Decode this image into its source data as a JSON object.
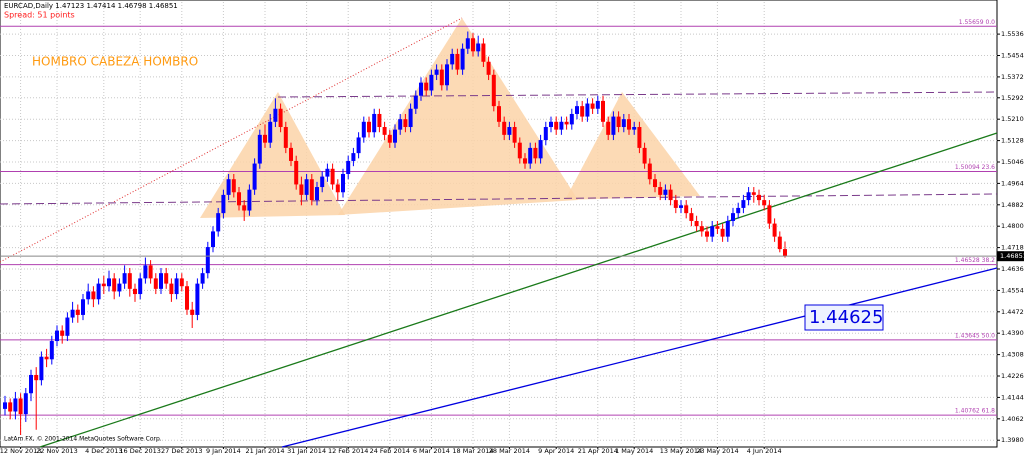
{
  "chart_data": {
    "type": "candlestick",
    "title": "EURCAD,Daily  1.47123 1.47414 1.46798 1.46851",
    "subtitle": "Spread: 51 points",
    "annotation": "HOMBRO CABEZA HOMBRO",
    "price_annotation": "1.44625",
    "copyright": "LatAm FX, © 2001-2014 MetaQuotes Software Corp.",
    "bull_color": "#0000ff",
    "bear_color": "#ff0000",
    "grid": true,
    "ylim": [
      1.3954,
      1.5659
    ],
    "yticks": [
      {
        "value": 1.5536,
        "label": "1.55360"
      },
      {
        "value": 1.5454,
        "label": "1.54540"
      },
      {
        "value": 1.5372,
        "label": "1.53720"
      },
      {
        "value": 1.5292,
        "label": "1.52920"
      },
      {
        "value": 1.521,
        "label": "1.52100"
      },
      {
        "value": 1.5128,
        "label": "1.51280"
      },
      {
        "value": 1.5046,
        "label": "1.50460"
      },
      {
        "value": 1.4964,
        "label": "1.49640"
      },
      {
        "value": 1.4882,
        "label": "1.48820"
      },
      {
        "value": 1.48,
        "label": "1.48000"
      },
      {
        "value": 1.4718,
        "label": "1.47180"
      },
      {
        "value": 1.4636,
        "label": "1.46360"
      },
      {
        "value": 1.4554,
        "label": "1.45540"
      },
      {
        "value": 1.4472,
        "label": "1.44720"
      },
      {
        "value": 1.439,
        "label": "1.43900"
      },
      {
        "value": 1.4308,
        "label": "1.43080"
      },
      {
        "value": 1.4226,
        "label": "1.42260"
      },
      {
        "value": 1.4144,
        "label": "1.41440"
      },
      {
        "value": 1.4062,
        "label": "1.40620"
      },
      {
        "value": 1.398,
        "label": "1.39800"
      }
    ],
    "levels": [
      {
        "value": 1.55659,
        "label": "1.55659 0.0"
      },
      {
        "value": 1.50094,
        "label": "1.50094 23.6"
      },
      {
        "value": 1.46528,
        "label": "1.46528 38.2"
      },
      {
        "value": 1.43645,
        "label": "1.43645 50.0"
      },
      {
        "value": 1.40762,
        "label": "1.40762 61.8"
      }
    ],
    "last_price": 1.46851,
    "categories": [
      null,
      null,
      null,
      "12 Nov 2013",
      null,
      null,
      null,
      null,
      null,
      null,
      "22 Nov 2013",
      null,
      null,
      null,
      null,
      null,
      null,
      null,
      null,
      "4 Dec 2013",
      null,
      null,
      null,
      null,
      null,
      null,
      "16 Dec 2013",
      null,
      null,
      null,
      null,
      null,
      null,
      null,
      "27 Dec 2013",
      null,
      null,
      null,
      null,
      null,
      null,
      null,
      "9 Jan 2014",
      null,
      null,
      null,
      null,
      null,
      null,
      null,
      "21 Jan 2014",
      null,
      null,
      null,
      null,
      null,
      null,
      null,
      "31 Jan 2014",
      null,
      null,
      null,
      null,
      null,
      null,
      null,
      "12 Feb 2014",
      null,
      null,
      null,
      null,
      null,
      null,
      null,
      "24 Feb 2014",
      null,
      null,
      null,
      null,
      null,
      null,
      null,
      "6 Mar 2014",
      null,
      null,
      null,
      null,
      null,
      null,
      null,
      "18 Mar 2014",
      null,
      null,
      null,
      null,
      null,
      null,
      "28 Mar 2014",
      null,
      null,
      null,
      null,
      null,
      null,
      null,
      null,
      "9 Apr 2014",
      null,
      null,
      null,
      null,
      null,
      null,
      null,
      "21 Apr 2014",
      null,
      null,
      null,
      null,
      null,
      null,
      "1 May 2014",
      null,
      null,
      null,
      null,
      null,
      null,
      null,
      null,
      "13 May 2014",
      null,
      null,
      null,
      null,
      null,
      null,
      "23 May 2014",
      null,
      null,
      null,
      null,
      null,
      null,
      null,
      null,
      "4 Jun 2014",
      null,
      null,
      null,
      null
    ],
    "candles": [
      [
        1.41,
        1.415,
        1.4075,
        1.4125
      ],
      [
        1.4125,
        1.414,
        1.406,
        1.409
      ],
      [
        1.409,
        1.4165,
        1.406,
        1.414
      ],
      [
        1.414,
        1.416,
        1.4,
        1.408
      ],
      [
        1.408,
        1.418,
        1.405,
        1.416
      ],
      [
        1.416,
        1.425,
        1.413,
        1.423
      ],
      [
        1.423,
        1.426,
        1.402,
        1.421
      ],
      [
        1.421,
        1.432,
        1.419,
        1.43
      ],
      [
        1.43,
        1.433,
        1.426,
        1.429
      ],
      [
        1.429,
        1.438,
        1.427,
        1.436
      ],
      [
        1.436,
        1.442,
        1.434,
        1.44
      ],
      [
        1.44,
        1.442,
        1.435,
        1.438
      ],
      [
        1.438,
        1.447,
        1.436,
        1.445
      ],
      [
        1.445,
        1.451,
        1.443,
        1.448
      ],
      [
        1.448,
        1.45,
        1.443,
        1.446
      ],
      [
        1.446,
        1.454,
        1.444,
        1.452
      ],
      [
        1.452,
        1.458,
        1.45,
        1.455
      ],
      [
        1.455,
        1.457,
        1.449,
        1.452
      ],
      [
        1.452,
        1.46,
        1.45,
        1.458
      ],
      [
        1.458,
        1.461,
        1.454,
        1.457
      ],
      [
        1.457,
        1.463,
        1.455,
        1.46
      ],
      [
        1.46,
        1.462,
        1.452,
        1.455
      ],
      [
        1.455,
        1.46,
        1.453,
        1.458
      ],
      [
        1.458,
        1.465,
        1.456,
        1.462
      ],
      [
        1.462,
        1.464,
        1.453,
        1.456
      ],
      [
        1.456,
        1.458,
        1.451,
        1.454
      ],
      [
        1.454,
        1.462,
        1.452,
        1.46
      ],
      [
        1.46,
        1.468,
        1.458,
        1.465
      ],
      [
        1.465,
        1.467,
        1.458,
        1.46
      ],
      [
        1.46,
        1.462,
        1.454,
        1.456
      ],
      [
        1.456,
        1.464,
        1.454,
        1.462
      ],
      [
        1.462,
        1.464,
        1.456,
        1.458
      ],
      [
        1.458,
        1.46,
        1.451,
        1.454
      ],
      [
        1.454,
        1.462,
        1.452,
        1.46
      ],
      [
        1.46,
        1.462,
        1.455,
        1.457
      ],
      [
        1.457,
        1.459,
        1.446,
        1.448
      ],
      [
        1.448,
        1.451,
        1.441,
        1.446
      ],
      [
        1.446,
        1.46,
        1.444,
        1.458
      ],
      [
        1.458,
        1.464,
        1.456,
        1.462
      ],
      [
        1.462,
        1.474,
        1.46,
        1.472
      ],
      [
        1.472,
        1.48,
        1.47,
        1.478
      ],
      [
        1.478,
        1.487,
        1.476,
        1.485
      ],
      [
        1.485,
        1.494,
        1.483,
        1.492
      ],
      [
        1.492,
        1.5,
        1.49,
        1.498
      ],
      [
        1.498,
        1.5,
        1.491,
        1.493
      ],
      [
        1.493,
        1.495,
        1.486,
        1.488
      ],
      [
        1.488,
        1.49,
        1.482,
        1.486
      ],
      [
        1.486,
        1.496,
        1.484,
        1.494
      ],
      [
        1.494,
        1.506,
        1.492,
        1.504
      ],
      [
        1.504,
        1.517,
        1.502,
        1.515
      ],
      [
        1.515,
        1.519,
        1.51,
        1.512
      ],
      [
        1.512,
        1.523,
        1.51,
        1.52
      ],
      [
        1.52,
        1.529,
        1.518,
        1.525
      ],
      [
        1.525,
        1.527,
        1.516,
        1.518
      ],
      [
        1.518,
        1.52,
        1.508,
        1.51
      ],
      [
        1.51,
        1.512,
        1.503,
        1.505
      ],
      [
        1.505,
        1.507,
        1.494,
        1.496
      ],
      [
        1.496,
        1.499,
        1.488,
        1.492
      ],
      [
        1.492,
        1.5,
        1.49,
        1.498
      ],
      [
        1.498,
        1.5,
        1.488,
        1.49
      ],
      [
        1.49,
        1.497,
        1.488,
        1.495
      ],
      [
        1.495,
        1.501,
        1.493,
        1.499
      ],
      [
        1.499,
        1.504,
        1.497,
        1.502
      ],
      [
        1.502,
        1.504,
        1.494,
        1.496
      ],
      [
        1.496,
        1.498,
        1.49,
        1.493
      ],
      [
        1.493,
        1.502,
        1.491,
        1.5
      ],
      [
        1.5,
        1.507,
        1.498,
        1.505
      ],
      [
        1.505,
        1.51,
        1.503,
        1.508
      ],
      [
        1.508,
        1.516,
        1.506,
        1.514
      ],
      [
        1.514,
        1.522,
        1.512,
        1.52
      ],
      [
        1.52,
        1.522,
        1.514,
        1.516
      ],
      [
        1.516,
        1.525,
        1.514,
        1.523
      ],
      [
        1.523,
        1.525,
        1.516,
        1.518
      ],
      [
        1.518,
        1.52,
        1.513,
        1.515
      ],
      [
        1.515,
        1.517,
        1.51,
        1.512
      ],
      [
        1.512,
        1.519,
        1.51,
        1.517
      ],
      [
        1.517,
        1.523,
        1.515,
        1.521
      ],
      [
        1.521,
        1.523,
        1.516,
        1.518
      ],
      [
        1.518,
        1.527,
        1.516,
        1.525
      ],
      [
        1.525,
        1.532,
        1.523,
        1.53
      ],
      [
        1.53,
        1.537,
        1.528,
        1.535
      ],
      [
        1.535,
        1.537,
        1.53,
        1.532
      ],
      [
        1.532,
        1.54,
        1.53,
        1.538
      ],
      [
        1.538,
        1.542,
        1.536,
        1.54
      ],
      [
        1.54,
        1.542,
        1.532,
        1.534
      ],
      [
        1.534,
        1.544,
        1.532,
        1.542
      ],
      [
        1.542,
        1.548,
        1.54,
        1.546
      ],
      [
        1.546,
        1.548,
        1.538,
        1.54
      ],
      [
        1.54,
        1.55,
        1.538,
        1.548
      ],
      [
        1.548,
        1.5546,
        1.546,
        1.552
      ],
      [
        1.552,
        1.554,
        1.545,
        1.547
      ],
      [
        1.547,
        1.553,
        1.545,
        1.55
      ],
      [
        1.55,
        1.552,
        1.541,
        1.543
      ],
      [
        1.543,
        1.545,
        1.536,
        1.538
      ],
      [
        1.538,
        1.54,
        1.524,
        1.526
      ],
      [
        1.526,
        1.528,
        1.518,
        1.52
      ],
      [
        1.52,
        1.522,
        1.513,
        1.515
      ],
      [
        1.515,
        1.52,
        1.513,
        1.518
      ],
      [
        1.518,
        1.52,
        1.51,
        1.512
      ],
      [
        1.512,
        1.514,
        1.504,
        1.506
      ],
      [
        1.506,
        1.508,
        1.502,
        1.504
      ],
      [
        1.504,
        1.512,
        1.502,
        1.51
      ],
      [
        1.51,
        1.512,
        1.504,
        1.506
      ],
      [
        1.506,
        1.515,
        1.504,
        1.513
      ],
      [
        1.513,
        1.52,
        1.511,
        1.518
      ],
      [
        1.518,
        1.522,
        1.516,
        1.52
      ],
      [
        1.52,
        1.522,
        1.515,
        1.517
      ],
      [
        1.517,
        1.522,
        1.515,
        1.52
      ],
      [
        1.52,
        1.522,
        1.517,
        1.519
      ],
      [
        1.519,
        1.525,
        1.517,
        1.523
      ],
      [
        1.523,
        1.528,
        1.521,
        1.526
      ],
      [
        1.526,
        1.528,
        1.52,
        1.522
      ],
      [
        1.522,
        1.529,
        1.52,
        1.527
      ],
      [
        1.527,
        1.529,
        1.523,
        1.525
      ],
      [
        1.525,
        1.53,
        1.523,
        1.528
      ],
      [
        1.528,
        1.53,
        1.518,
        1.52
      ],
      [
        1.52,
        1.522,
        1.513,
        1.515
      ],
      [
        1.515,
        1.524,
        1.513,
        1.522
      ],
      [
        1.522,
        1.524,
        1.516,
        1.518
      ],
      [
        1.518,
        1.523,
        1.516,
        1.521
      ],
      [
        1.521,
        1.523,
        1.515,
        1.517
      ],
      [
        1.517,
        1.52,
        1.515,
        1.518
      ],
      [
        1.518,
        1.52,
        1.508,
        1.51
      ],
      [
        1.51,
        1.512,
        1.502,
        1.504
      ],
      [
        1.504,
        1.506,
        1.496,
        1.498
      ],
      [
        1.498,
        1.5,
        1.493,
        1.495
      ],
      [
        1.495,
        1.497,
        1.49,
        1.492
      ],
      [
        1.492,
        1.496,
        1.49,
        1.494
      ],
      [
        1.494,
        1.496,
        1.488,
        1.49
      ],
      [
        1.49,
        1.492,
        1.485,
        1.487
      ],
      [
        1.487,
        1.49,
        1.485,
        1.488
      ],
      [
        1.488,
        1.49,
        1.483,
        1.485
      ],
      [
        1.485,
        1.487,
        1.48,
        1.482
      ],
      [
        1.482,
        1.484,
        1.478,
        1.48
      ],
      [
        1.48,
        1.482,
        1.476,
        1.478
      ],
      [
        1.478,
        1.48,
        1.474,
        1.476
      ],
      [
        1.476,
        1.482,
        1.474,
        1.48
      ],
      [
        1.48,
        1.482,
        1.477,
        1.479
      ],
      [
        1.479,
        1.481,
        1.474,
        1.476
      ],
      [
        1.476,
        1.484,
        1.474,
        1.482
      ],
      [
        1.482,
        1.487,
        1.48,
        1.485
      ],
      [
        1.485,
        1.489,
        1.483,
        1.487
      ],
      [
        1.487,
        1.492,
        1.485,
        1.49
      ],
      [
        1.49,
        1.495,
        1.488,
        1.493
      ],
      [
        1.493,
        1.495,
        1.489,
        1.492
      ],
      [
        1.492,
        1.494,
        1.488,
        1.49
      ],
      [
        1.49,
        1.492,
        1.486,
        1.488
      ],
      [
        1.488,
        1.49,
        1.479,
        1.481
      ],
      [
        1.481,
        1.483,
        1.474,
        1.476
      ],
      [
        1.476,
        1.478,
        1.47,
        1.47123
      ],
      [
        1.47123,
        1.47414,
        1.46798,
        1.46851
      ]
    ]
  }
}
